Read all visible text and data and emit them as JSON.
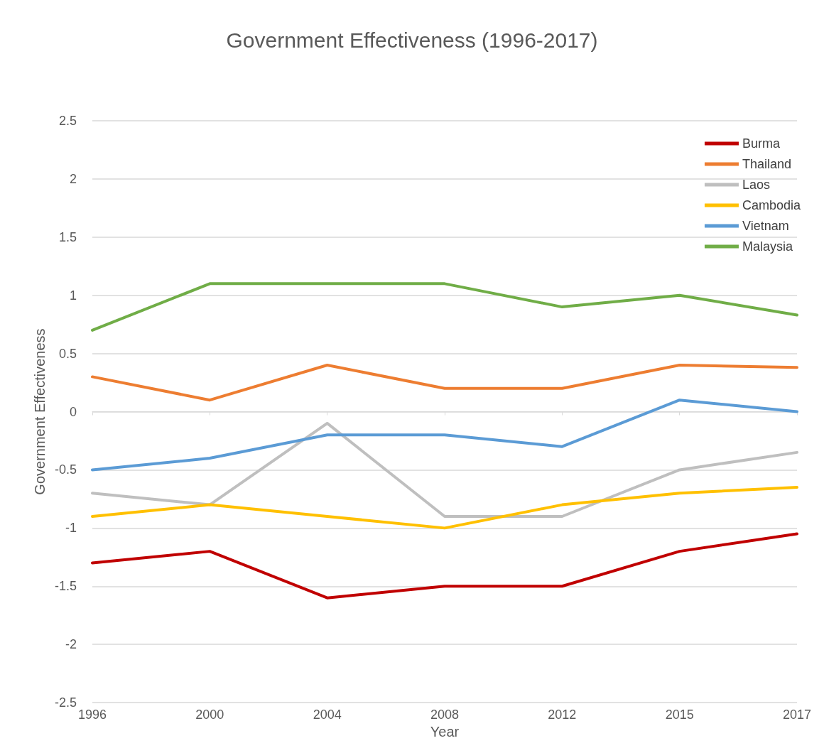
{
  "chart_data": {
    "type": "line",
    "title": "Government Effectiveness (1996-2017)",
    "xlabel": "Year",
    "ylabel": "Government Effectiveness",
    "categories": [
      "1996",
      "2000",
      "2004",
      "2008",
      "2012",
      "2015",
      "2017"
    ],
    "series": [
      {
        "name": "Burma",
        "color": "#c00000",
        "values": [
          -1.3,
          -1.2,
          -1.6,
          -1.5,
          -1.5,
          -1.2,
          -1.05
        ]
      },
      {
        "name": "Thailand",
        "color": "#ed7d31",
        "values": [
          0.3,
          0.1,
          0.4,
          0.2,
          0.2,
          0.4,
          0.38
        ]
      },
      {
        "name": "Laos",
        "color": "#bfbfbf",
        "values": [
          -0.7,
          -0.8,
          -0.1,
          -0.9,
          -0.9,
          -0.5,
          -0.35
        ]
      },
      {
        "name": "Cambodia",
        "color": "#ffc000",
        "values": [
          -0.9,
          -0.8,
          -0.9,
          -1.0,
          -0.8,
          -0.7,
          -0.65
        ]
      },
      {
        "name": "Vietnam",
        "color": "#5b9bd5",
        "values": [
          -0.5,
          -0.4,
          -0.2,
          -0.2,
          -0.3,
          0.1,
          0.0
        ]
      },
      {
        "name": "Malaysia",
        "color": "#70ad47",
        "values": [
          0.7,
          1.1,
          1.1,
          1.1,
          0.9,
          1.0,
          0.83
        ]
      }
    ],
    "ylim": [
      -2.5,
      2.5
    ],
    "yticks": [
      -2.5,
      -2,
      -1.5,
      -1,
      -0.5,
      0,
      0.5,
      1,
      1.5,
      2,
      2.5
    ],
    "grid": "y",
    "legend": "top right",
    "marker": "none",
    "line_style": "solid"
  }
}
